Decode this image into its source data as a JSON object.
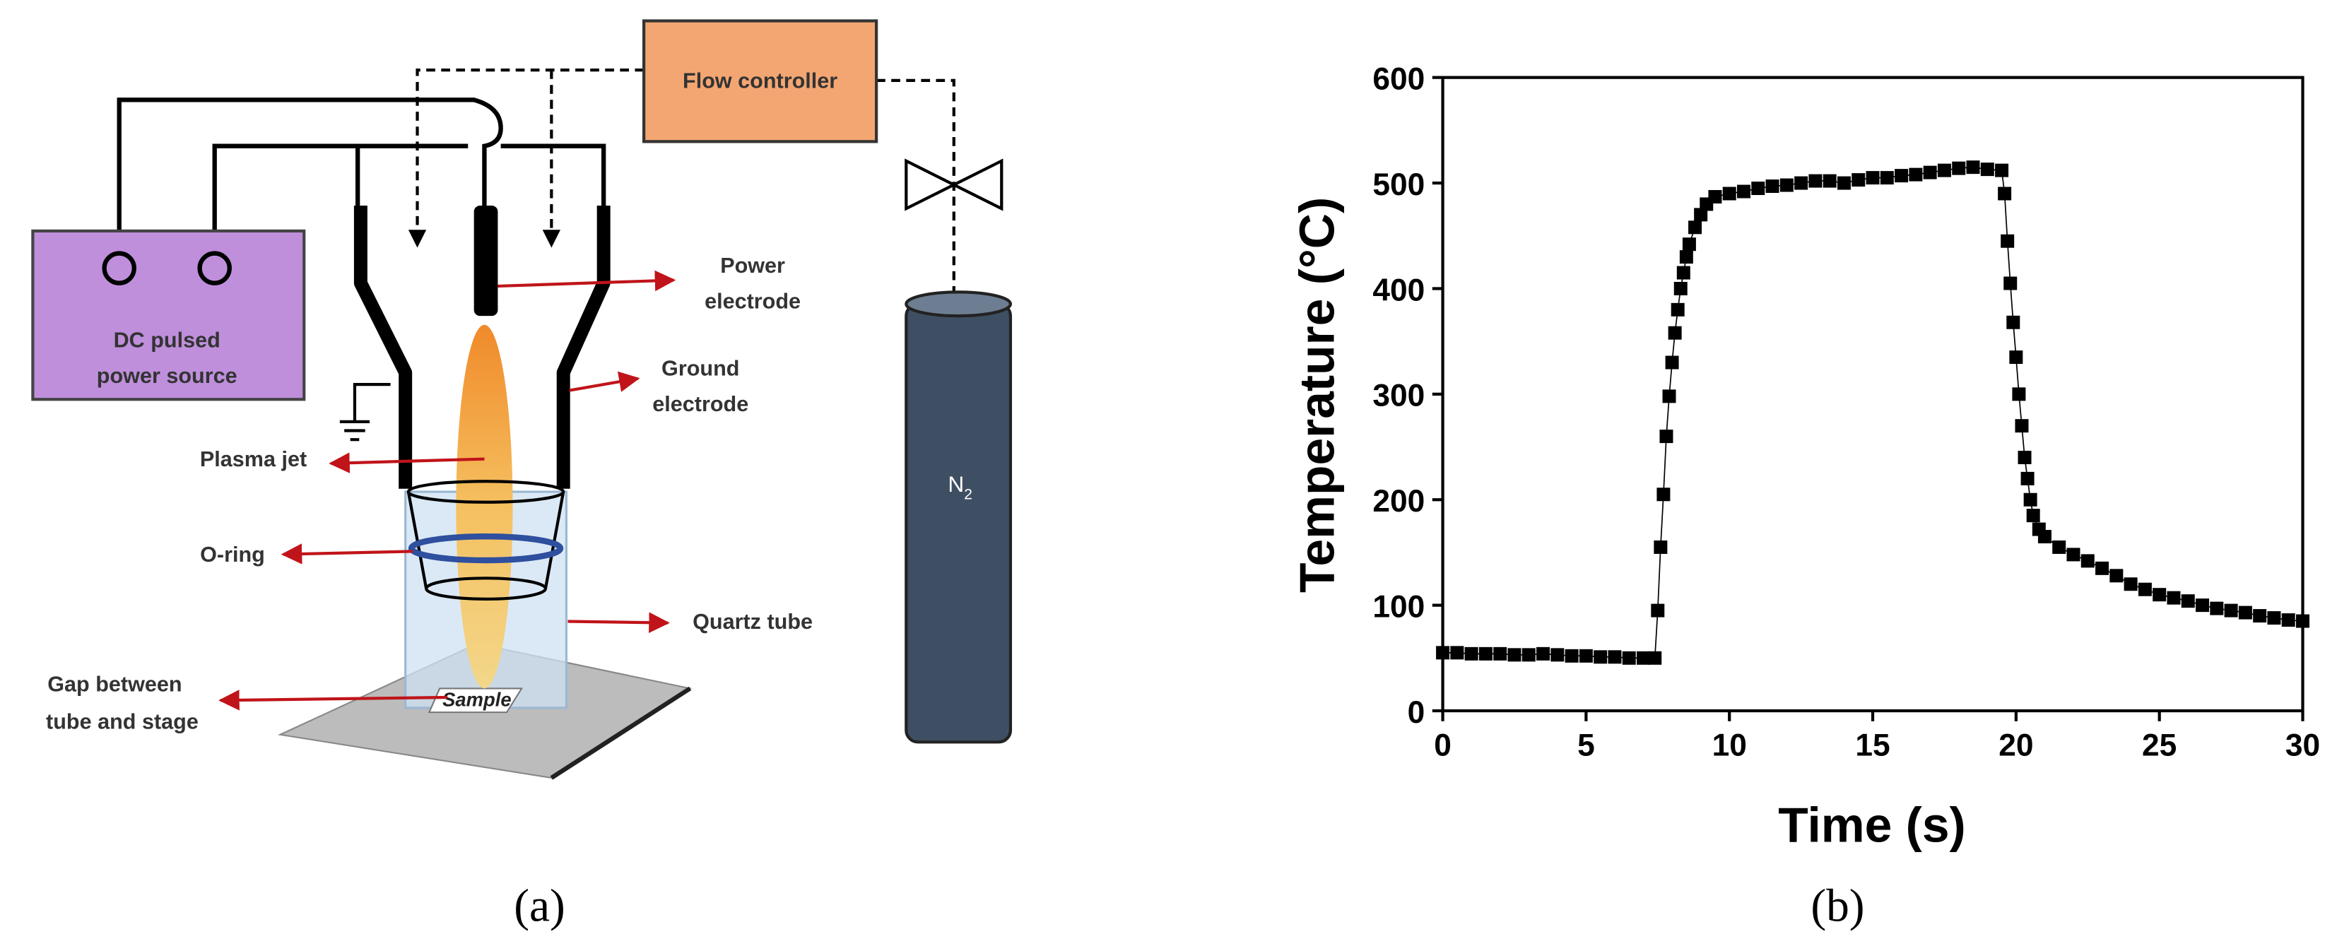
{
  "diagram": {
    "flow_controller": "Flow controller",
    "power_source": [
      "DC pulsed",
      "power source"
    ],
    "power_electrode": [
      "Power",
      "electrode"
    ],
    "ground_electrode": [
      "Ground",
      "electrode"
    ],
    "plasma_jet": "Plasma jet",
    "o_ring": "O-ring",
    "quartz_tube": "Quartz tube",
    "gap": [
      "Gap between",
      "tube and stage"
    ],
    "sample": "Sample",
    "gas": {
      "symbol": "N",
      "subscript": "2"
    },
    "panel_label": "(a)"
  },
  "chart_data": {
    "type": "scatter",
    "panel_label": "(b)",
    "x_label": "Time (s)",
    "y_label": "Temperature (°C)",
    "color": "#000000",
    "x": [
      0,
      0.5,
      1,
      1.5,
      2,
      2.5,
      3,
      3.5,
      4,
      4.5,
      5,
      5.5,
      6,
      6.5,
      7,
      7.4,
      7.5,
      7.6,
      7.7,
      7.8,
      7.9,
      8,
      8.1,
      8.2,
      8.3,
      8.4,
      8.5,
      8.6,
      8.8,
      9,
      9.2,
      9.5,
      10,
      10.5,
      11,
      11.5,
      12,
      12.5,
      13,
      13.5,
      14,
      14.5,
      15,
      15.5,
      16,
      16.5,
      17,
      17.5,
      18,
      18.5,
      19,
      19.5,
      19.6,
      19.7,
      19.8,
      19.9,
      20,
      20.1,
      20.2,
      20.3,
      20.4,
      20.5,
      20.6,
      20.8,
      21,
      21.5,
      22,
      22.5,
      23,
      23.5,
      24,
      24.5,
      25,
      25.5,
      26,
      26.5,
      27,
      27.5,
      28,
      28.5,
      29,
      29.5,
      30
    ],
    "values": [
      55,
      55,
      54,
      54,
      54,
      53,
      53,
      54,
      53,
      52,
      52,
      51,
      51,
      50,
      50,
      50,
      95,
      155,
      205,
      260,
      298,
      330,
      358,
      380,
      400,
      415,
      430,
      442,
      458,
      470,
      480,
      487,
      490,
      492,
      495,
      497,
      498,
      500,
      502,
      502,
      500,
      503,
      505,
      505,
      507,
      508,
      510,
      512,
      514,
      515,
      513,
      512,
      490,
      445,
      405,
      368,
      335,
      300,
      270,
      240,
      220,
      200,
      185,
      172,
      165,
      155,
      148,
      142,
      135,
      128,
      120,
      115,
      110,
      107,
      104,
      100,
      97,
      95,
      93,
      90,
      88,
      86,
      85
    ],
    "xlim": [
      0,
      30
    ],
    "ylim": [
      0,
      600
    ],
    "xticks": [
      0,
      5,
      10,
      15,
      20,
      25,
      30
    ],
    "yticks": [
      0,
      100,
      200,
      300,
      400,
      500,
      600
    ]
  }
}
